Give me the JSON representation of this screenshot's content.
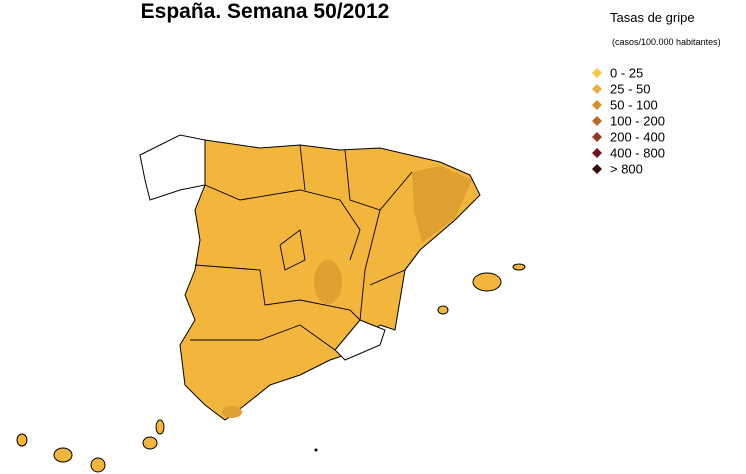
{
  "title": "España. Semana 50/2012",
  "legend": {
    "title": "Tasas de gripe",
    "subtitle": "(casos/100.000 habitantes)",
    "items": [
      {
        "label": "0 - 25",
        "color": "#f5c842"
      },
      {
        "label": "25 - 50",
        "color": "#e8b040"
      },
      {
        "label": "50 - 100",
        "color": "#d48f2c"
      },
      {
        "label": "100 - 200",
        "color": "#b86a28"
      },
      {
        "label": "200 - 400",
        "color": "#8f3a22"
      },
      {
        "label": "400 - 800",
        "color": "#6e1420"
      },
      {
        "label": "> 800",
        "color": "#3a0a0a"
      }
    ]
  }
}
